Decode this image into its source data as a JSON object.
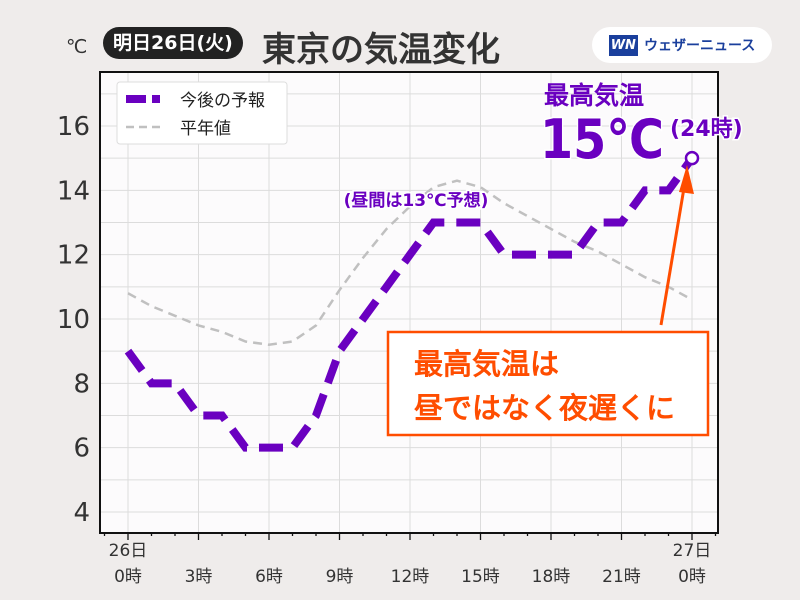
{
  "header": {
    "unit": "℃",
    "date_badge": "明日26日(火)",
    "title": "東京の気温変化",
    "logo_mark": "WN",
    "logo_text": "ウェザーニュース"
  },
  "chart_data": {
    "type": "line",
    "title": "東京の気温変化",
    "ylabel": "℃",
    "ylim": [
      3.5,
      17.5
    ],
    "xlim": [
      -1.2,
      25.2
    ],
    "yticks": [
      4,
      6,
      8,
      10,
      12,
      14,
      16
    ],
    "xticks": [
      {
        "x": 0,
        "l1": "26日",
        "l2": "0時"
      },
      {
        "x": 3,
        "l1": "",
        "l2": "3時"
      },
      {
        "x": 6,
        "l1": "",
        "l2": "6時"
      },
      {
        "x": 9,
        "l1": "",
        "l2": "9時"
      },
      {
        "x": 12,
        "l1": "",
        "l2": "12時"
      },
      {
        "x": 15,
        "l1": "",
        "l2": "15時"
      },
      {
        "x": 18,
        "l1": "",
        "l2": "18時"
      },
      {
        "x": 21,
        "l1": "",
        "l2": "21時"
      },
      {
        "x": 24,
        "l1": "27日",
        "l2": "0時"
      }
    ],
    "grid": true,
    "legend_position": "top-left",
    "series": [
      {
        "name": "今後の予報",
        "color": "#6a00c0",
        "style": "thick-dashed",
        "x": [
          0,
          1,
          2,
          3,
          4,
          5,
          6,
          7,
          8,
          9,
          10,
          11,
          12,
          13,
          14,
          15,
          16,
          17,
          18,
          19,
          20,
          21,
          22,
          23,
          24
        ],
        "values": [
          9,
          8,
          8,
          7,
          7,
          6,
          6,
          6,
          7,
          9,
          10,
          11,
          12,
          13,
          13,
          13,
          12,
          12,
          12,
          12,
          13,
          13,
          14,
          14,
          15
        ]
      },
      {
        "name": "平年値",
        "color": "#c0c0c0",
        "style": "dashed",
        "x": [
          0,
          1,
          2,
          3,
          4,
          5,
          6,
          7,
          8,
          9,
          10,
          11,
          12,
          13,
          14,
          15,
          16,
          17,
          18,
          19,
          20,
          21,
          22,
          23,
          24
        ],
        "values": [
          10.8,
          10.4,
          10.1,
          9.8,
          9.6,
          9.3,
          9.2,
          9.3,
          9.8,
          10.9,
          11.9,
          12.8,
          13.5,
          14.1,
          14.3,
          14.1,
          13.6,
          13.2,
          12.8,
          12.4,
          12.1,
          11.7,
          11.3,
          11.0,
          10.6
        ]
      }
    ],
    "annotations": {
      "max_label": "最高気温",
      "max_value": "15℃",
      "max_time": "(24時)",
      "daytime_note": "(昼間は13℃予想)",
      "callout_line1": "最高気温は",
      "callout_line2": "昼ではなく夜遅くに",
      "callout_color": "#ff4d00"
    }
  }
}
